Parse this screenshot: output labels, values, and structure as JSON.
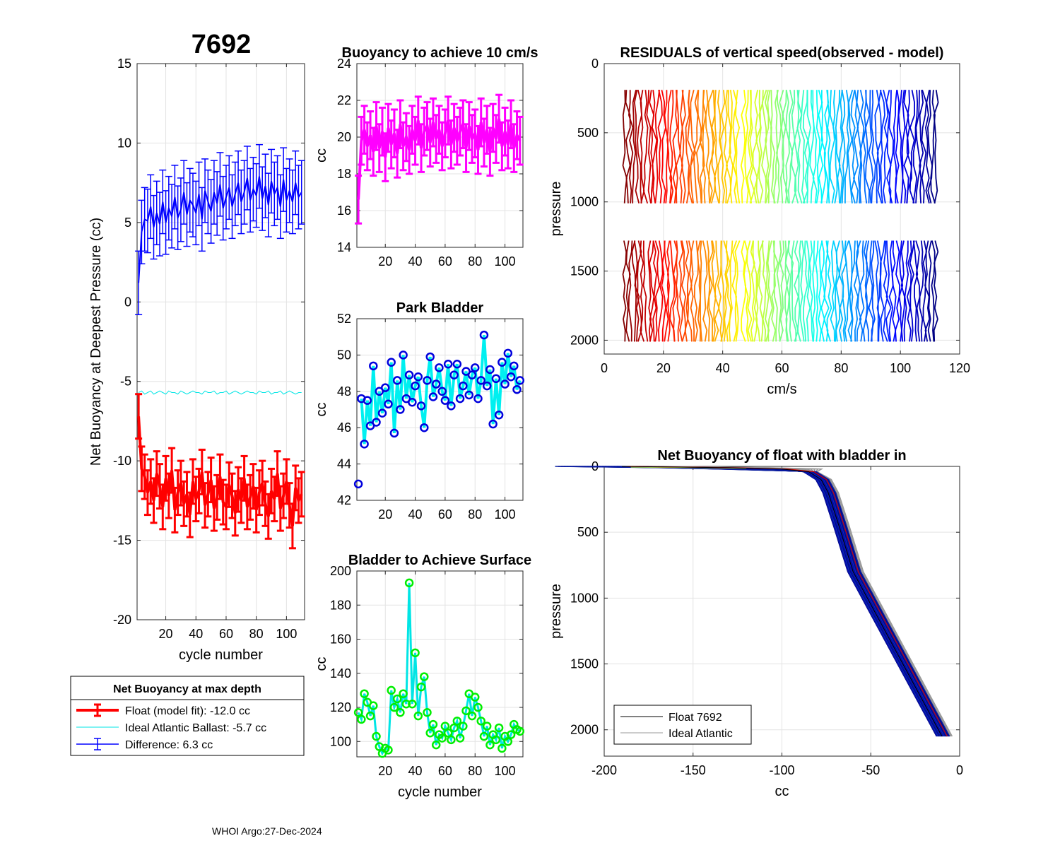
{
  "figure_title": "7692",
  "footer": "WHOI Argo:27-Dec-2024",
  "colors": {
    "float": "#ff0000",
    "difference": "#0000ff",
    "ideal": "#00e5e5",
    "buoyancy10": "#ff00ff",
    "park_line": "#00f0f0",
    "park_marker": "#0000dd",
    "surface_line": "#00e5e5",
    "surface_marker": "#00ee00",
    "profile_float": "#000000",
    "profile_ideal": "#999999"
  },
  "legend_main": {
    "title": "Net Buoyancy at max depth",
    "entries": [
      "Float (model fit): -12.0 cc",
      "Ideal Atlantic Ballast:  -5.7 cc",
      "Difference:   6.3 cc"
    ]
  },
  "legend_profile": {
    "entries": [
      "Float 7692",
      "Ideal Atlantic"
    ]
  },
  "chart_data": [
    {
      "id": "net_buoyancy",
      "type": "line",
      "title": "",
      "xlabel": "cycle number",
      "ylabel": "Net Buoyancy at Deepest Pressure (cc)",
      "xlim": [
        1,
        112
      ],
      "ylim": [
        -20,
        15
      ],
      "xticks": [
        20,
        40,
        60,
        80,
        100
      ],
      "yticks": [
        -20,
        -15,
        -10,
        -5,
        0,
        5,
        10,
        15
      ],
      "cycles": [
        2,
        4,
        6,
        8,
        10,
        12,
        14,
        16,
        18,
        20,
        22,
        24,
        26,
        28,
        30,
        32,
        34,
        36,
        38,
        40,
        42,
        44,
        46,
        48,
        50,
        52,
        54,
        56,
        58,
        60,
        62,
        64,
        66,
        68,
        70,
        72,
        74,
        76,
        78,
        80,
        82,
        84,
        86,
        88,
        90,
        92,
        94,
        96,
        98,
        100,
        102,
        104,
        106,
        108,
        110
      ],
      "series": [
        {
          "name": "Float (model fit)",
          "error_half_width": 1.4,
          "values": [
            -7.2,
            -10.5,
            -11.0,
            -12.0,
            -11.3,
            -12.5,
            -10.8,
            -11.6,
            -12.9,
            -11.1,
            -12.2,
            -10.6,
            -13.1,
            -12.0,
            -11.4,
            -12.7,
            -12.1,
            -13.4,
            -11.3,
            -12.4,
            -11.9,
            -10.7,
            -12.8,
            -12.1,
            -11.2,
            -13.0,
            -12.3,
            -11.0,
            -12.6,
            -12.9,
            -11.5,
            -12.2,
            -13.3,
            -11.8,
            -12.5,
            -11.1,
            -12.9,
            -12.3,
            -11.6,
            -13.1,
            -12.0,
            -11.4,
            -12.7,
            -13.5,
            -11.9,
            -12.4,
            -10.8,
            -13.0,
            -12.2,
            -11.3,
            -12.8,
            -14.1,
            -11.7,
            -12.5,
            -12.1
          ]
        },
        {
          "name": "Ideal Atlantic Ballast",
          "values": [
            -5.7,
            -5.6,
            -5.8,
            -5.7,
            -5.6,
            -5.8,
            -5.7,
            -5.6,
            -5.7,
            -5.8,
            -5.6,
            -5.7,
            -5.7,
            -5.8,
            -5.6,
            -5.7,
            -5.8,
            -5.7,
            -5.6,
            -5.7,
            -5.7,
            -5.8,
            -5.6,
            -5.7,
            -5.7,
            -5.6,
            -5.8,
            -5.7,
            -5.7,
            -5.6,
            -5.8,
            -5.7,
            -5.6,
            -5.7,
            -5.8,
            -5.7,
            -5.6,
            -5.7,
            -5.7,
            -5.8,
            -5.6,
            -5.7,
            -5.7,
            -5.6,
            -5.8,
            -5.7,
            -5.7,
            -5.6,
            -5.8,
            -5.7,
            -5.6,
            -5.7,
            -5.8,
            -5.7,
            -5.7
          ]
        },
        {
          "name": "Difference",
          "error_half_width": 2.0,
          "values": [
            1.2,
            4.4,
            5.2,
            5.1,
            6.0,
            4.7,
            5.6,
            4.9,
            6.3,
            5.0,
            5.9,
            5.4,
            6.6,
            5.3,
            5.8,
            6.9,
            5.5,
            6.4,
            6.1,
            5.6,
            6.8,
            5.2,
            7.0,
            6.3,
            5.7,
            6.9,
            6.2,
            7.4,
            5.9,
            6.6,
            7.2,
            6.0,
            6.8,
            7.5,
            6.3,
            6.9,
            7.8,
            6.4,
            7.1,
            6.7,
            7.9,
            6.5,
            7.3,
            6.1,
            7.6,
            6.8,
            7.2,
            6.0,
            7.7,
            6.4,
            7.0,
            6.3,
            7.5,
            6.6,
            6.9
          ]
        }
      ]
    },
    {
      "id": "buoyancy_10",
      "type": "line",
      "title": "Buoyancy to achieve 10 cm/s",
      "xlabel": "",
      "ylabel": "cc",
      "xlim": [
        1,
        112
      ],
      "ylim": [
        14,
        24
      ],
      "xticks": [
        20,
        40,
        60,
        80,
        100
      ],
      "yticks": [
        14,
        16,
        18,
        20,
        22,
        24
      ],
      "error_half_width": 1.3,
      "cycles": [
        2,
        4,
        6,
        8,
        10,
        12,
        14,
        16,
        18,
        20,
        22,
        24,
        26,
        28,
        30,
        32,
        34,
        36,
        38,
        40,
        42,
        44,
        46,
        48,
        50,
        52,
        54,
        56,
        58,
        60,
        62,
        64,
        66,
        68,
        70,
        72,
        74,
        76,
        78,
        80,
        82,
        84,
        86,
        88,
        90,
        92,
        94,
        96,
        98,
        100,
        102,
        104,
        106,
        108,
        110
      ],
      "values": [
        16.6,
        19.8,
        20.4,
        19.5,
        20.1,
        19.2,
        20.6,
        19.4,
        20.3,
        18.9,
        20.5,
        19.6,
        20.2,
        19.1,
        20.7,
        19.5,
        20.0,
        19.3,
        20.4,
        19.8,
        20.9,
        19.4,
        20.3,
        20.6,
        19.7,
        20.8,
        19.9,
        20.4,
        19.5,
        20.2,
        20.9,
        19.6,
        20.5,
        19.8,
        20.3,
        20.7,
        19.4,
        20.6,
        19.9,
        20.2,
        19.3,
        20.8,
        19.7,
        20.4,
        19.2,
        20.5,
        19.9,
        21.0,
        19.5,
        20.3,
        19.6,
        20.7,
        19.4,
        20.1,
        19.8
      ]
    },
    {
      "id": "park_bladder",
      "type": "line",
      "title": "Park Bladder",
      "xlabel": "",
      "ylabel": "cc",
      "xlim": [
        1,
        112
      ],
      "ylim": [
        42,
        52
      ],
      "xticks": [
        20,
        40,
        60,
        80,
        100
      ],
      "yticks": [
        42,
        44,
        46,
        48,
        50,
        52
      ],
      "cycles": [
        2,
        4,
        6,
        8,
        10,
        12,
        14,
        16,
        18,
        20,
        22,
        24,
        26,
        28,
        30,
        32,
        34,
        36,
        38,
        40,
        42,
        44,
        46,
        48,
        50,
        52,
        54,
        56,
        58,
        60,
        62,
        64,
        66,
        68,
        70,
        72,
        74,
        76,
        78,
        80,
        82,
        84,
        86,
        88,
        90,
        92,
        94,
        96,
        98,
        100,
        102,
        104,
        106,
        108,
        110
      ],
      "values": [
        42.9,
        47.6,
        45.1,
        47.5,
        46.1,
        49.4,
        46.3,
        48.0,
        46.8,
        48.2,
        47.3,
        49.6,
        45.7,
        48.6,
        47.0,
        50.0,
        47.6,
        48.9,
        47.4,
        48.3,
        48.8,
        47.2,
        46.0,
        48.6,
        49.9,
        47.7,
        48.4,
        49.3,
        48.0,
        47.5,
        49.5,
        47.2,
        48.9,
        49.5,
        47.6,
        48.3,
        49.1,
        47.8,
        48.9,
        49.3,
        47.6,
        48.6,
        51.1,
        48.3,
        49.2,
        46.2,
        48.7,
        46.7,
        49.6,
        48.4,
        50.1,
        48.8,
        49.4,
        48.1,
        48.6
      ]
    },
    {
      "id": "bladder_surface",
      "type": "line",
      "title": "Bladder to Achieve Surface",
      "xlabel": "cycle number",
      "ylabel": "cc",
      "xlim": [
        1,
        112
      ],
      "ylim": [
        91,
        200
      ],
      "xticks": [
        20,
        40,
        60,
        80,
        100
      ],
      "yticks": [
        100,
        120,
        140,
        160,
        180,
        200
      ],
      "cycles": [
        2,
        4,
        6,
        8,
        10,
        12,
        14,
        16,
        18,
        20,
        22,
        24,
        26,
        28,
        30,
        32,
        34,
        36,
        38,
        40,
        42,
        44,
        46,
        48,
        50,
        52,
        54,
        56,
        58,
        60,
        62,
        64,
        66,
        68,
        70,
        72,
        74,
        76,
        78,
        80,
        82,
        84,
        86,
        88,
        90,
        92,
        94,
        96,
        98,
        100,
        102,
        104,
        106,
        108,
        110
      ],
      "values": [
        117,
        113,
        128,
        123,
        115,
        121,
        103,
        97,
        93,
        96,
        95,
        130,
        120,
        125,
        117,
        128,
        122,
        193,
        122,
        152,
        115,
        132,
        138,
        117,
        105,
        110,
        98,
        104,
        102,
        109,
        105,
        101,
        108,
        112,
        102,
        109,
        118,
        128,
        115,
        126,
        120,
        112,
        103,
        109,
        98,
        104,
        101,
        108,
        96,
        103,
        100,
        104,
        110,
        107,
        106
      ]
    },
    {
      "id": "residuals",
      "type": "line",
      "title": "RESIDUALS of vertical speed(observed - model)",
      "xlabel": "cm/s",
      "ylabel": "pressure",
      "xlim": [
        0,
        120
      ],
      "ylim": [
        0,
        2100
      ],
      "y_reversed": true,
      "xticks": [
        0,
        20,
        40,
        60,
        80,
        100,
        120
      ],
      "yticks": [
        0,
        500,
        1000,
        1500,
        2000
      ],
      "profile_offsets_cm_s": [
        7,
        8,
        9,
        10,
        11,
        12,
        13,
        14,
        15,
        16,
        17,
        18,
        19,
        20,
        21,
        22,
        23,
        24,
        25,
        26,
        27,
        28,
        29,
        30,
        31,
        32,
        33,
        34,
        35,
        36,
        37,
        38,
        39,
        40,
        41,
        42,
        43,
        44,
        45,
        47,
        48,
        49,
        50,
        51,
        52,
        53,
        54,
        55,
        56,
        57,
        58,
        59,
        60,
        61,
        62,
        63,
        64,
        65,
        66,
        67,
        68,
        69,
        70,
        71,
        72,
        73,
        74,
        75,
        76,
        77,
        78,
        79,
        80,
        81,
        82,
        83,
        84,
        85,
        86,
        87,
        88,
        89,
        90,
        91,
        92,
        93,
        94,
        95,
        96,
        97,
        98,
        99,
        100,
        101,
        102,
        103,
        104,
        105,
        106,
        107,
        108,
        109,
        110,
        111,
        112
      ],
      "pressure_segments": [
        [
          190,
          1010
        ],
        [
          1280,
          2010
        ]
      ],
      "colormap": "jet"
    },
    {
      "id": "profile",
      "type": "line",
      "title": "Net Buoyancy of float with bladder in",
      "xlabel": "cc",
      "ylabel": "pressure",
      "xlim": [
        -200,
        0
      ],
      "ylim": [
        0,
        2200
      ],
      "y_reversed": true,
      "xticks": [
        -200,
        -150,
        -100,
        -50,
        0
      ],
      "yticks": [
        0,
        500,
        1000,
        1500,
        2000
      ],
      "series": [
        {
          "name": "Float 7692",
          "x": [
            -190,
            -160,
            -130,
            -100,
            -85,
            -78,
            -74,
            -68,
            -60,
            -48,
            -38,
            -28,
            -18,
            -10
          ],
          "y": [
            0,
            5,
            10,
            20,
            40,
            100,
            200,
            450,
            800,
            1100,
            1350,
            1600,
            1850,
            2050
          ]
        },
        {
          "name": "Ideal Atlantic",
          "x": [
            -195,
            -165,
            -135,
            -105,
            -88,
            -80,
            -76,
            -70,
            -62,
            -50,
            -40,
            -30,
            -20,
            -12
          ],
          "y": [
            0,
            5,
            10,
            20,
            40,
            100,
            200,
            450,
            800,
            1100,
            1350,
            1600,
            1850,
            2050
          ]
        }
      ]
    }
  ]
}
